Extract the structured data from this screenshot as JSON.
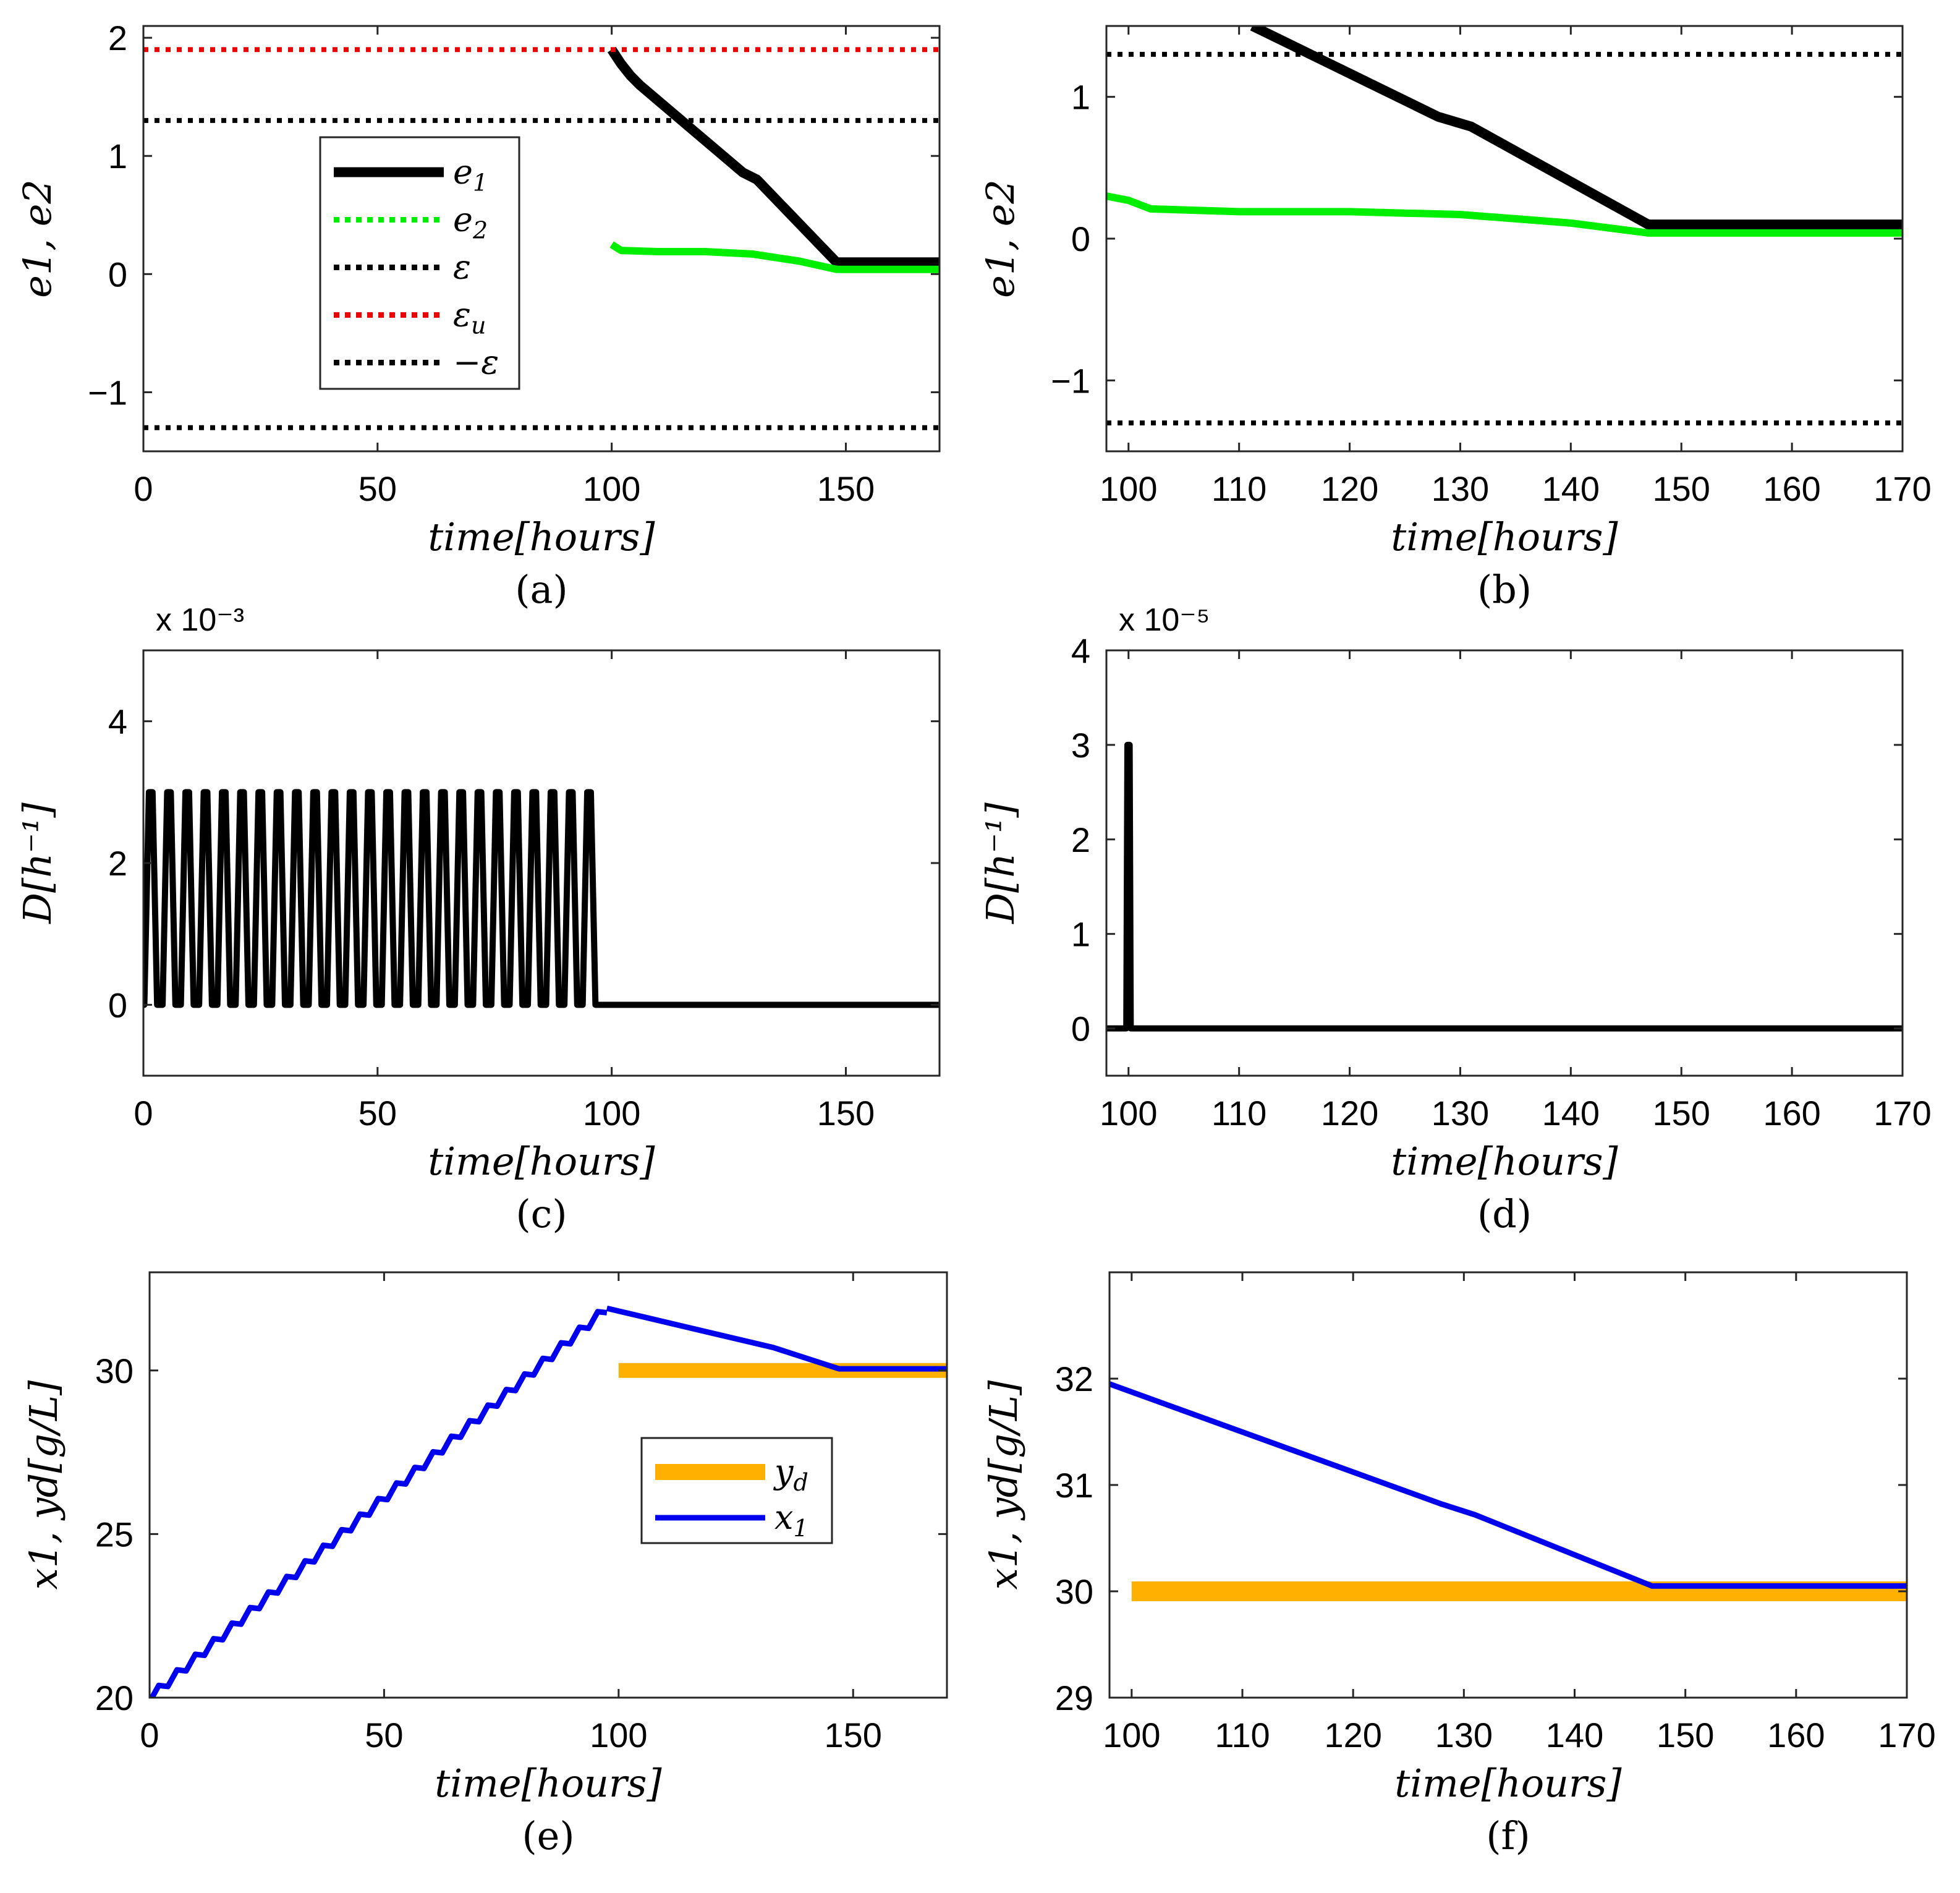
{
  "figure": {
    "panels": [
      "a",
      "b",
      "c",
      "d",
      "e",
      "f"
    ]
  },
  "chart_data": [
    {
      "id": "a",
      "type": "line",
      "caption": "(a)",
      "xlabel": "time[hours]",
      "ylabel": "e1, e2",
      "xlim": [
        0,
        170
      ],
      "ylim": [
        -1.5,
        2.1
      ],
      "xticks": [
        0,
        50,
        100,
        150
      ],
      "xticklabels": [
        "0",
        "50",
        "100",
        "150"
      ],
      "yticks": [
        -1,
        0,
        1,
        2
      ],
      "yticklabels": [
        "−1",
        "0",
        "1",
        "2"
      ],
      "legend": {
        "placement": "upper-middle",
        "entries": [
          {
            "label": "e1",
            "sub": "1",
            "base": "e",
            "color": "#000000",
            "style": "solid-thick"
          },
          {
            "label": "e2",
            "sub": "2",
            "base": "e",
            "color": "#00ee00",
            "style": "dotted"
          },
          {
            "label": "ε",
            "sub": "",
            "base": "ε",
            "color": "#000000",
            "style": "dotted"
          },
          {
            "label": "εu",
            "sub": "u",
            "base": "ε",
            "color": "#ee0000",
            "style": "dotted"
          },
          {
            "label": "−ε",
            "sub": "",
            "base": "−ε",
            "color": "#000000",
            "style": "dotted"
          }
        ]
      },
      "series": [
        {
          "name": "e1",
          "color": "#000000",
          "width": 16,
          "x": [
            100,
            102,
            104,
            106,
            128,
            131,
            148,
            170
          ],
          "y": [
            1.9,
            1.78,
            1.68,
            1.6,
            0.86,
            0.8,
            0.1,
            0.1
          ]
        },
        {
          "name": "e2",
          "color": "#00ee00",
          "width": 12,
          "x": [
            100,
            102,
            110,
            120,
            130,
            140,
            148,
            170
          ],
          "y": [
            0.25,
            0.2,
            0.19,
            0.19,
            0.17,
            0.11,
            0.04,
            0.04
          ]
        },
        {
          "name": "εu",
          "color": "#ee0000",
          "width": 8,
          "dash": "8,10",
          "x": [
            0,
            170
          ],
          "y": [
            1.9,
            1.9
          ]
        },
        {
          "name": "ε",
          "color": "#000000",
          "width": 8,
          "dash": "8,10",
          "x": [
            0,
            170
          ],
          "y": [
            1.3,
            1.3
          ]
        },
        {
          "name": "−ε",
          "color": "#000000",
          "width": 8,
          "dash": "8,10",
          "x": [
            0,
            170
          ],
          "y": [
            -1.3,
            -1.3
          ]
        }
      ]
    },
    {
      "id": "b",
      "type": "line",
      "caption": "(b)",
      "xlabel": "time[hours]",
      "ylabel": "e1, e2",
      "xlim": [
        98,
        170
      ],
      "ylim": [
        -1.5,
        1.5
      ],
      "xticks": [
        100,
        110,
        120,
        130,
        140,
        150,
        160,
        170
      ],
      "xticklabels": [
        "100",
        "110",
        "120",
        "130",
        "140",
        "150",
        "160",
        "170"
      ],
      "yticks": [
        -1,
        0,
        1
      ],
      "yticklabels": [
        "−1",
        "0",
        "1"
      ],
      "series": [
        {
          "name": "e1",
          "color": "#000000",
          "width": 16,
          "x": [
            111.2,
            128,
            131,
            147,
            170
          ],
          "y": [
            1.5,
            0.86,
            0.79,
            0.1,
            0.1
          ]
        },
        {
          "name": "e2",
          "color": "#00ee00",
          "width": 12,
          "x": [
            98,
            100,
            102,
            110,
            120,
            130,
            140,
            147,
            170
          ],
          "y": [
            0.3,
            0.27,
            0.21,
            0.19,
            0.19,
            0.17,
            0.11,
            0.04,
            0.04
          ]
        },
        {
          "name": "ε",
          "color": "#000000",
          "width": 8,
          "dash": "8,10",
          "x": [
            98,
            170
          ],
          "y": [
            1.3,
            1.3
          ]
        },
        {
          "name": "−ε",
          "color": "#000000",
          "width": 8,
          "dash": "8,10",
          "x": [
            98,
            170
          ],
          "y": [
            -1.3,
            -1.3
          ]
        }
      ]
    },
    {
      "id": "c",
      "type": "line",
      "caption": "(c)",
      "xlabel": "time[hours]",
      "ylabel": "D[h⁻¹]",
      "yexponent": "x 10⁻³",
      "xlim": [
        0,
        170
      ],
      "ylim": [
        -1,
        5
      ],
      "xticks": [
        0,
        50,
        100,
        150
      ],
      "xticklabels": [
        "0",
        "50",
        "100",
        "150"
      ],
      "yticks": [
        0,
        2,
        4
      ],
      "yticklabels": [
        "0",
        "2",
        "4"
      ],
      "pulses": {
        "count": 25,
        "period": 3.9,
        "start": 0.2,
        "amplitude": 3,
        "end": 98
      },
      "series": [
        {
          "name": "D",
          "color": "#000000",
          "width": 10,
          "x": [
            98,
            170
          ],
          "y": [
            0,
            0
          ]
        }
      ]
    },
    {
      "id": "d",
      "type": "line",
      "caption": "(d)",
      "xlabel": "time[hours]",
      "ylabel": "D[h⁻¹]",
      "yexponent": "x 10⁻⁵",
      "xlim": [
        98,
        170
      ],
      "ylim": [
        -0.5,
        4
      ],
      "xticks": [
        100,
        110,
        120,
        130,
        140,
        150,
        160,
        170
      ],
      "xticklabels": [
        "100",
        "110",
        "120",
        "130",
        "140",
        "150",
        "160",
        "170"
      ],
      "yticks": [
        0,
        1,
        2,
        3,
        4
      ],
      "yticklabels": [
        "0",
        "1",
        "2",
        "3",
        "4"
      ],
      "series": [
        {
          "name": "D",
          "color": "#000000",
          "width": 10,
          "x": [
            98,
            99.8,
            99.9,
            100.1,
            100.2,
            170
          ],
          "y": [
            0,
            0,
            3,
            3,
            0,
            0
          ]
        }
      ]
    },
    {
      "id": "e",
      "type": "line",
      "caption": "(e)",
      "xlabel": "time[hours]",
      "ylabel": "x1, yd[g/L]",
      "xlim": [
        0,
        170
      ],
      "ylim": [
        20,
        33
      ],
      "xticks": [
        0,
        50,
        100,
        150
      ],
      "xticklabels": [
        "0",
        "50",
        "100",
        "150"
      ],
      "yticks": [
        20,
        25,
        30
      ],
      "yticklabels": [
        "20",
        "25",
        "30"
      ],
      "legend": {
        "placement": "center-right",
        "entries": [
          {
            "label": "yd",
            "sub": "d",
            "base": "y",
            "color": "#ffb000",
            "style": "solid-thick"
          },
          {
            "label": "x1",
            "sub": "1",
            "base": "x",
            "color": "#0000ee",
            "style": "solid"
          }
        ]
      },
      "staircase": {
        "start": [
          0,
          20
        ],
        "end": [
          97.5,
          31.9
        ],
        "steps": 25,
        "amp": 0.45
      },
      "series": [
        {
          "name": "yd",
          "color": "#ffb000",
          "width": 24,
          "x": [
            100,
            170
          ],
          "y": [
            30,
            30
          ]
        },
        {
          "name": "x1",
          "color": "#0000ee",
          "width": 9,
          "x": [
            97.5,
            130,
            133,
            147,
            170
          ],
          "y": [
            31.9,
            30.8,
            30.7,
            30.05,
            30.05
          ]
        }
      ]
    },
    {
      "id": "f",
      "type": "line",
      "caption": "(f)",
      "xlabel": "time[hours]",
      "ylabel": "x1, yd[g/L]",
      "xlim": [
        98,
        170
      ],
      "ylim": [
        29,
        33
      ],
      "xticks": [
        100,
        110,
        120,
        130,
        140,
        150,
        160,
        170
      ],
      "xticklabels": [
        "100",
        "110",
        "120",
        "130",
        "140",
        "150",
        "160",
        "170"
      ],
      "yticks": [
        29,
        30,
        31,
        32
      ],
      "yticklabels": [
        "29",
        "30",
        "31",
        "32"
      ],
      "series": [
        {
          "name": "yd",
          "color": "#ffb000",
          "width": 32,
          "x": [
            100,
            170
          ],
          "y": [
            30,
            30
          ]
        },
        {
          "name": "x1",
          "color": "#0000ee",
          "width": 9,
          "x": [
            98,
            128,
            131,
            147,
            170
          ],
          "y": [
            31.95,
            30.82,
            30.72,
            30.05,
            30.05
          ]
        }
      ]
    }
  ]
}
